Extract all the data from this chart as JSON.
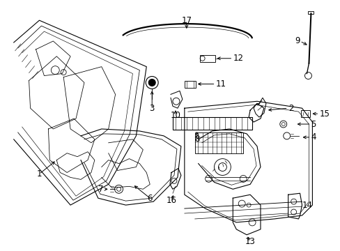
{
  "background_color": "#ffffff",
  "fig_width": 4.89,
  "fig_height": 3.6,
  "dpi": 100,
  "lc": "#000000",
  "lw": 0.8,
  "label_fs": 8.5
}
